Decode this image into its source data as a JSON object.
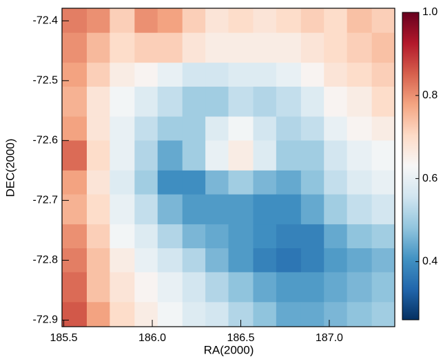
{
  "chart_data": {
    "type": "heatmap",
    "x_label": "RA(2000)",
    "y_label": "DEC(2000)",
    "colormap": "RdBu_r",
    "xbins": [
      185.49,
      185.63,
      185.76,
      185.9,
      186.03,
      186.17,
      186.3,
      186.43,
      186.57,
      186.7,
      186.84,
      186.97,
      187.1,
      187.24,
      187.37
    ],
    "ybins": [
      -72.379,
      -72.42,
      -72.47,
      -72.51,
      -72.56,
      -72.6,
      -72.65,
      -72.69,
      -72.74,
      -72.78,
      -72.82,
      -72.87,
      -72.911
    ],
    "values": [
      [
        0.82,
        0.8,
        0.72,
        0.8,
        0.78,
        0.72,
        0.68,
        0.7,
        0.68,
        0.7,
        0.72,
        0.7,
        0.74,
        0.72
      ],
      [
        0.8,
        0.75,
        0.7,
        0.72,
        0.72,
        0.68,
        0.66,
        0.66,
        0.66,
        0.66,
        0.68,
        0.7,
        0.72,
        0.74
      ],
      [
        0.78,
        0.72,
        0.66,
        0.64,
        0.6,
        0.56,
        0.56,
        0.58,
        0.58,
        0.6,
        0.64,
        0.68,
        0.7,
        0.72
      ],
      [
        0.76,
        0.68,
        0.62,
        0.58,
        0.54,
        0.5,
        0.5,
        0.54,
        0.52,
        0.54,
        0.58,
        0.64,
        0.66,
        0.7
      ],
      [
        0.78,
        0.68,
        0.6,
        0.54,
        0.5,
        0.5,
        0.58,
        0.62,
        0.56,
        0.52,
        0.54,
        0.6,
        0.64,
        0.66
      ],
      [
        0.84,
        0.7,
        0.6,
        0.52,
        0.44,
        0.5,
        0.6,
        0.66,
        0.58,
        0.5,
        0.5,
        0.56,
        0.6,
        0.62
      ],
      [
        0.78,
        0.68,
        0.58,
        0.5,
        0.4,
        0.4,
        0.46,
        0.5,
        0.46,
        0.44,
        0.48,
        0.54,
        0.58,
        0.6
      ],
      [
        0.76,
        0.7,
        0.6,
        0.54,
        0.46,
        0.42,
        0.42,
        0.42,
        0.4,
        0.4,
        0.44,
        0.5,
        0.54,
        0.56
      ],
      [
        0.8,
        0.72,
        0.62,
        0.58,
        0.52,
        0.46,
        0.44,
        0.42,
        0.4,
        0.38,
        0.38,
        0.44,
        0.48,
        0.5
      ],
      [
        0.82,
        0.74,
        0.66,
        0.6,
        0.56,
        0.52,
        0.46,
        0.42,
        0.38,
        0.36,
        0.38,
        0.42,
        0.44,
        0.46
      ],
      [
        0.84,
        0.74,
        0.68,
        0.64,
        0.6,
        0.56,
        0.52,
        0.48,
        0.44,
        0.42,
        0.42,
        0.44,
        0.46,
        0.48
      ],
      [
        0.86,
        0.78,
        0.7,
        0.66,
        0.62,
        0.58,
        0.56,
        0.52,
        0.48,
        0.44,
        0.44,
        0.46,
        0.48,
        0.5
      ]
    ],
    "xlim": [
      185.49,
      187.37
    ],
    "ylim": [
      -72.911,
      -72.379
    ],
    "xticks": [
      185.5,
      {
        "value": 186,
        "label": "186.0"
      },
      186.5,
      {
        "value": 187,
        "label": "187.0"
      }
    ],
    "yticks": [
      -72.4,
      -72.5,
      -72.6,
      -72.7,
      -72.8,
      -72.9
    ],
    "clim": [
      0.26,
      1
    ],
    "cticks": [
      0.4,
      0.6,
      0.8,
      {
        "value": 1,
        "label": "1.0"
      }
    ]
  }
}
